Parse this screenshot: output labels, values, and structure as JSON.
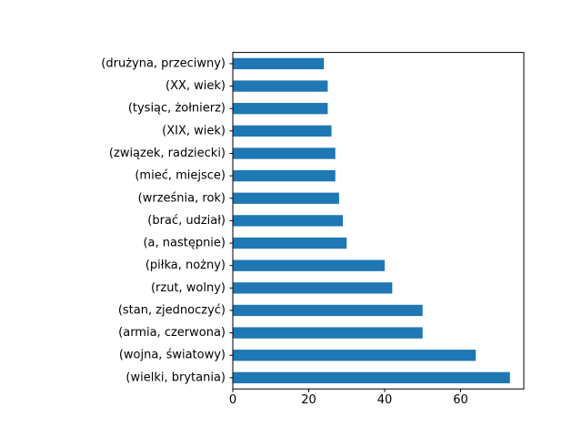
{
  "chart_data": {
    "type": "bar",
    "orientation": "horizontal",
    "title": "",
    "xlabel": "",
    "ylabel": "",
    "xlim": [
      0,
      76.65
    ],
    "xticks": [
      0,
      20,
      40,
      60
    ],
    "grid": false,
    "bar_color": "#1f77b4",
    "categories": [
      "(wielki, brytania)",
      "(wojna, światowy)",
      "(armia, czerwona)",
      "(stan, zjednoczyć)",
      "(rzut, wolny)",
      "(piłka, nożny)",
      "(a, następnie)",
      "(brać, udział)",
      "(września, rok)",
      "(mieć, miejsce)",
      "(związek, radziecki)",
      "(XIX, wiek)",
      "(tysiąc, żołnierz)",
      "(XX, wiek)",
      "(drużyna, przeciwny)"
    ],
    "values": [
      73,
      64,
      50,
      50,
      42,
      40,
      30,
      29,
      28,
      27,
      27,
      26,
      25,
      25,
      24
    ]
  }
}
